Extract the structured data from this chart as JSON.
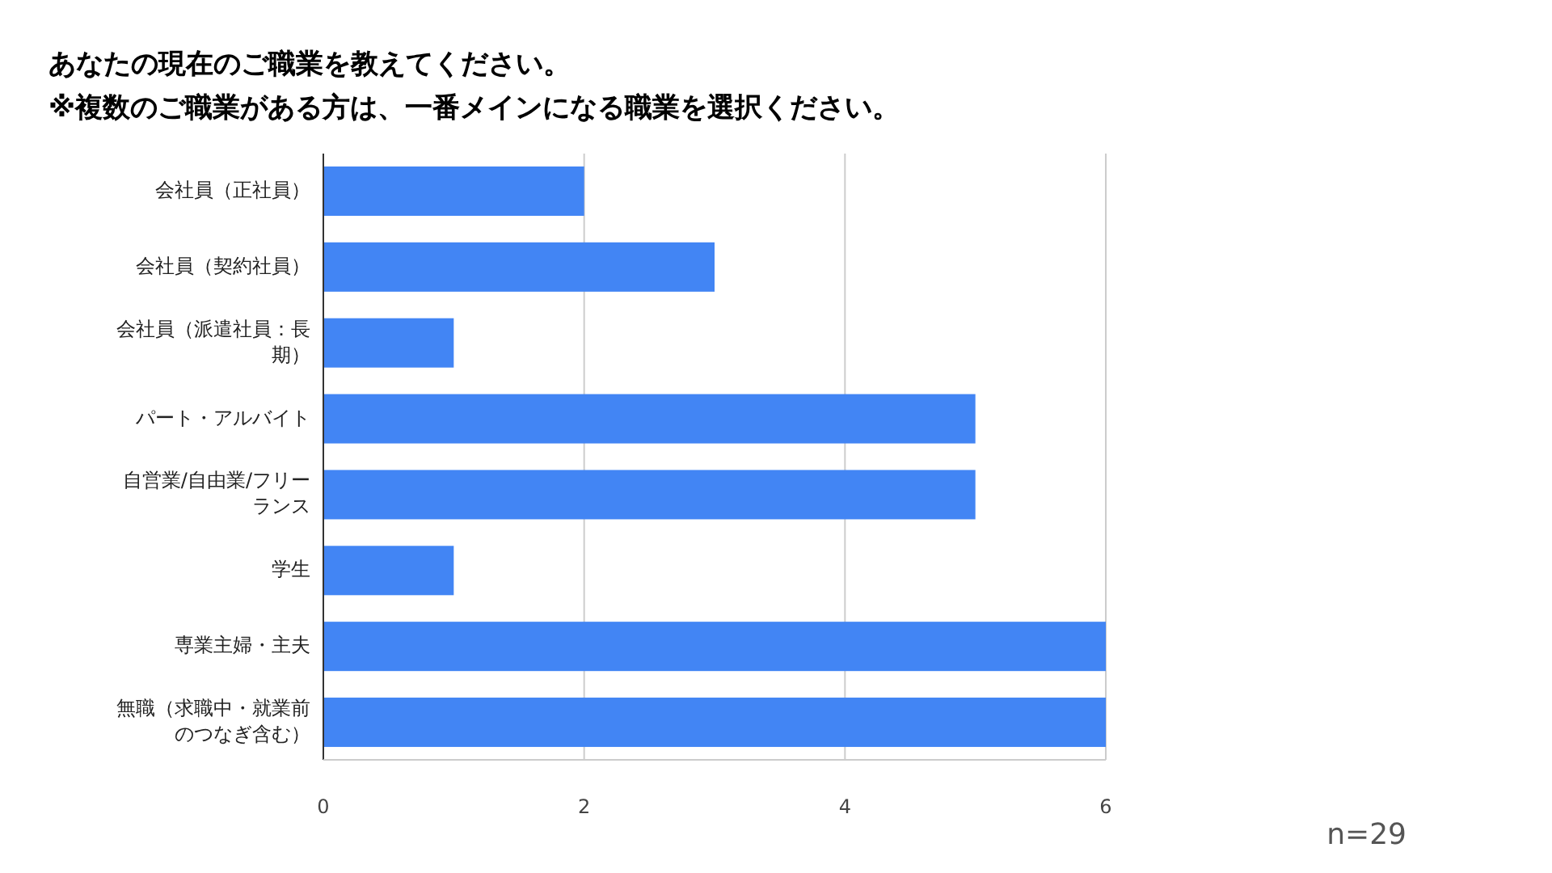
{
  "chart_data": {
    "type": "bar",
    "orientation": "horizontal",
    "title": "あなたの現在のご職業を教えてください。\n※複数のご職業がある方は、一番メインになる職業を選択ください。",
    "categories": [
      "会社員（正社員）",
      "会社員（契約社員）",
      "会社員（派遣社員：長期）",
      "パート・アルバイト",
      "自営業/自由業/フリーランス",
      "学生",
      "専業主婦・主夫",
      "無職（求職中・就業前のつなぎ含む）"
    ],
    "values": [
      2,
      3,
      1,
      5,
      5,
      1,
      6,
      6
    ],
    "color": "#4285f4",
    "xlim": [
      0,
      6
    ],
    "xticks": [
      0,
      2,
      4,
      6
    ],
    "grid": "x",
    "annotations": [
      "n=29"
    ]
  }
}
